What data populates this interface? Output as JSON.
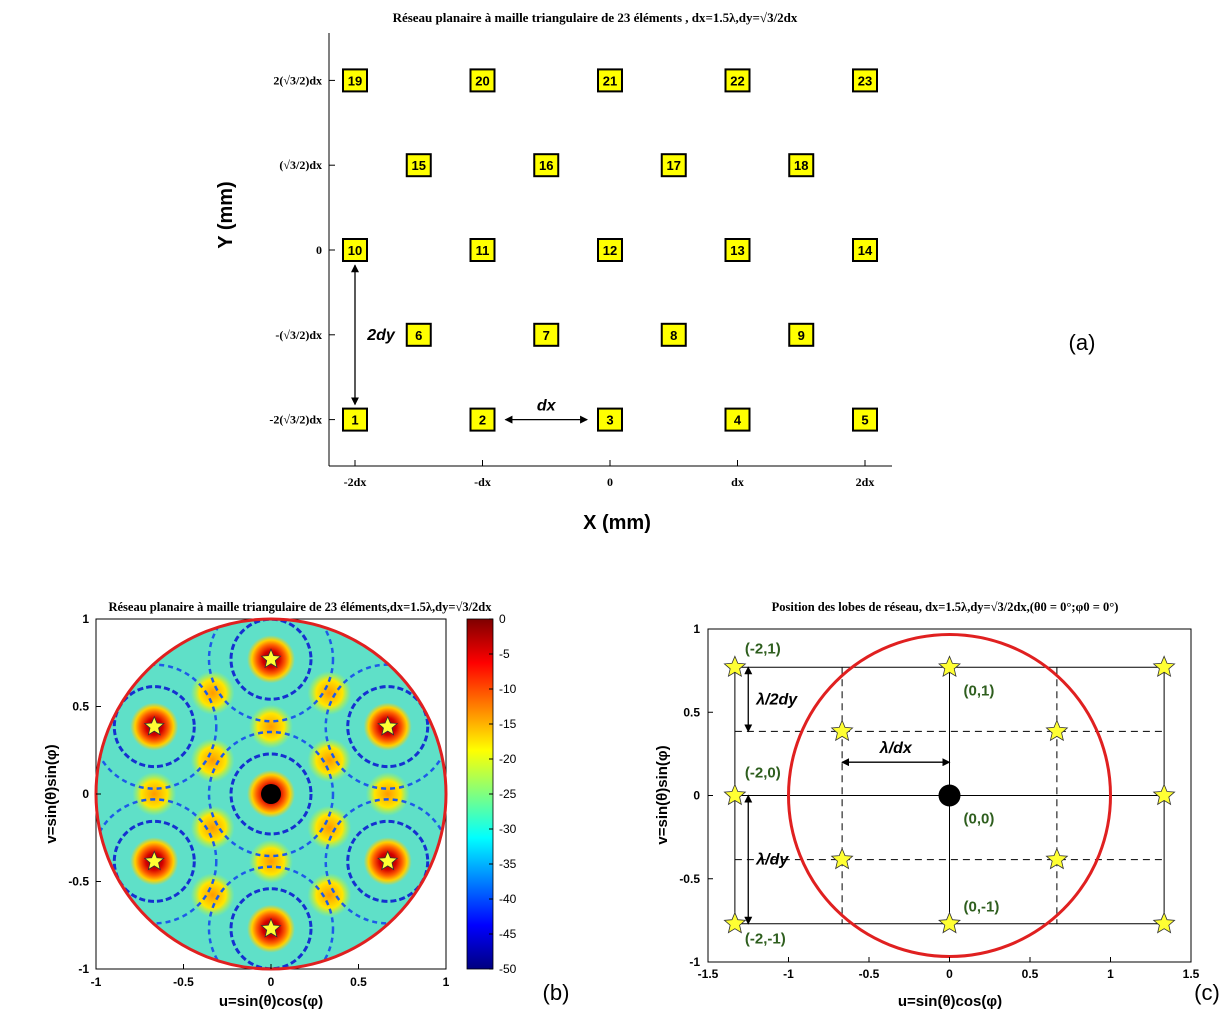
{
  "chart_data": [
    {
      "panel": "a",
      "type": "scatter",
      "title": "Réseau planaire à maille triangulaire de 23 éléments , dx=1.5λ,dy=√3/2dx",
      "xlabel": "X (mm)",
      "ylabel": "Y (mm)",
      "x_ticks": [
        {
          "value": -2,
          "label": "-2dx"
        },
        {
          "value": -1,
          "label": "-dx"
        },
        {
          "value": 0,
          "label": "0"
        },
        {
          "value": 1,
          "label": "dx"
        },
        {
          "value": 2,
          "label": "2dx"
        }
      ],
      "y_ticks": [
        {
          "value": 2,
          "label": "2(√3/2)dx"
        },
        {
          "value": 1,
          "label": "(√3/2)dx"
        },
        {
          "value": 0,
          "label": "0"
        },
        {
          "value": -1,
          "label": "-(√3/2)dx"
        },
        {
          "value": -2,
          "label": "-2(√3/2)dx"
        }
      ],
      "x_unit": "dx",
      "y_unit": "(√3/2)dx",
      "elements": [
        {
          "label": "1",
          "x": -2,
          "y": -2
        },
        {
          "label": "2",
          "x": -1,
          "y": -2
        },
        {
          "label": "3",
          "x": 0,
          "y": -2
        },
        {
          "label": "4",
          "x": 1,
          "y": -2
        },
        {
          "label": "5",
          "x": 2,
          "y": -2
        },
        {
          "label": "6",
          "x": -1.5,
          "y": -1
        },
        {
          "label": "7",
          "x": -0.5,
          "y": -1
        },
        {
          "label": "8",
          "x": 0.5,
          "y": -1
        },
        {
          "label": "9",
          "x": 1.5,
          "y": -1
        },
        {
          "label": "10",
          "x": -2,
          "y": 0
        },
        {
          "label": "11",
          "x": -1,
          "y": 0
        },
        {
          "label": "12",
          "x": 0,
          "y": 0
        },
        {
          "label": "13",
          "x": 1,
          "y": 0
        },
        {
          "label": "14",
          "x": 2,
          "y": 0
        },
        {
          "label": "15",
          "x": -1.5,
          "y": 1
        },
        {
          "label": "16",
          "x": -0.5,
          "y": 1
        },
        {
          "label": "17",
          "x": 0.5,
          "y": 1
        },
        {
          "label": "18",
          "x": 1.5,
          "y": 1
        },
        {
          "label": "19",
          "x": -2,
          "y": 2
        },
        {
          "label": "20",
          "x": -1,
          "y": 2
        },
        {
          "label": "21",
          "x": 0,
          "y": 2
        },
        {
          "label": "22",
          "x": 1,
          "y": 2
        },
        {
          "label": "23",
          "x": 2,
          "y": 2
        }
      ],
      "annotations": [
        {
          "text": "2dy",
          "from": [
            -2,
            -1.82
          ],
          "to": [
            -2,
            -0.18
          ]
        },
        {
          "text": "dx",
          "from": [
            -0.82,
            -2
          ],
          "to": [
            -0.18,
            -2
          ]
        }
      ],
      "panel_label": "(a)",
      "colors": {
        "element_fill": "#ffff00",
        "element_border": "#000000"
      }
    },
    {
      "panel": "b",
      "type": "heatmap",
      "title": "Réseau planaire à maille triangulaire de 23 éléments,dx=1.5λ,dy=√3/2dx",
      "xlabel": "u=sin(θ)cos(φ)",
      "ylabel": "v=sin(θ)sin(φ)",
      "xlim": [
        -1,
        1
      ],
      "ylim": [
        -1,
        1
      ],
      "x_ticks": [
        "-1",
        "-0.5",
        "0",
        "0.5",
        "1"
      ],
      "y_ticks": [
        "-1",
        "-0.5",
        "0",
        "0.5",
        "1"
      ],
      "colorbar": {
        "range": [
          -50,
          0
        ],
        "ticks": [
          "0",
          "-5",
          "-10",
          "-15",
          "-20",
          "-25",
          "-30",
          "-35",
          "-40",
          "-45",
          "-50"
        ],
        "colormap": "jet"
      },
      "main_beam": {
        "u": 0,
        "v": 0
      },
      "grating_lobes": [
        {
          "u": 0,
          "v": 0.77
        },
        {
          "u": -0.667,
          "v": 0.385
        },
        {
          "u": 0.667,
          "v": 0.385
        },
        {
          "u": -0.667,
          "v": -0.385
        },
        {
          "u": 0.667,
          "v": -0.385
        },
        {
          "u": 0,
          "v": -0.77
        }
      ],
      "visible_region": "unit circle",
      "panel_label": "(b)",
      "colors": {
        "circle": "#e02020",
        "star": "#ffff33"
      }
    },
    {
      "panel": "c",
      "type": "scatter",
      "title": "Position des lobes de réseau, dx=1.5λ,dy=√3/2dx,(θ0 = 0°;φ0 = 0°)",
      "xlabel": "u=sin(θ)cos(φ)",
      "ylabel": "v=sin(θ)sin(φ)",
      "xlim": [
        -1.5,
        1.5
      ],
      "ylim": [
        -1,
        1
      ],
      "x_ticks": [
        "-1.5",
        "-1",
        "-0.5",
        "0",
        "0.5",
        "1",
        "1.5"
      ],
      "y_ticks": [
        "-1",
        "-0.5",
        "0",
        "0.5",
        "1"
      ],
      "grid_u_solid": [
        -1.333,
        0,
        1.333
      ],
      "grid_u_dashed": [
        -0.667,
        0.667
      ],
      "grid_v_solid": [
        -0.77,
        0,
        0.77
      ],
      "grid_v_dashed": [
        -0.385,
        0.385
      ],
      "main_beam": {
        "u": 0,
        "v": 0
      },
      "lobes": [
        {
          "u": -1.333,
          "v": 0.77
        },
        {
          "u": 0,
          "v": 0.77
        },
        {
          "u": 1.333,
          "v": 0.77
        },
        {
          "u": -0.667,
          "v": 0.385
        },
        {
          "u": 0.667,
          "v": 0.385
        },
        {
          "u": -1.333,
          "v": 0
        },
        {
          "u": 1.333,
          "v": 0
        },
        {
          "u": -0.667,
          "v": -0.385
        },
        {
          "u": 0.667,
          "v": -0.385
        },
        {
          "u": -1.333,
          "v": -0.77
        },
        {
          "u": 0,
          "v": -0.77
        },
        {
          "u": 1.333,
          "v": -0.77
        }
      ],
      "order_labels": [
        {
          "text": "(-2,1)",
          "u": -1.333,
          "v": 0.77
        },
        {
          "text": "(0,1)",
          "u": 0,
          "v": 0.77
        },
        {
          "text": "(-2,0)",
          "u": -1.333,
          "v": 0
        },
        {
          "text": "(0,0)",
          "u": 0,
          "v": 0
        },
        {
          "text": "(0,-1)",
          "u": 0,
          "v": -0.77
        },
        {
          "text": "(-2,-1)",
          "u": -1.333,
          "v": -0.77
        }
      ],
      "annotations": [
        {
          "text": "λ/2dy",
          "from": [
            -1.25,
            0.77
          ],
          "to": [
            -1.25,
            0.385
          ]
        },
        {
          "text": "λ/dx",
          "from": [
            -0.667,
            0.2
          ],
          "to": [
            0,
            0.2
          ]
        },
        {
          "text": "λ/dy",
          "from": [
            -1.25,
            0
          ],
          "to": [
            -1.25,
            -0.77
          ]
        }
      ],
      "visible_region": "unit circle",
      "panel_label": "(c)",
      "colors": {
        "circle": "#e02020",
        "star": "#ffff33",
        "order_label": "#2e5e1e"
      }
    }
  ]
}
